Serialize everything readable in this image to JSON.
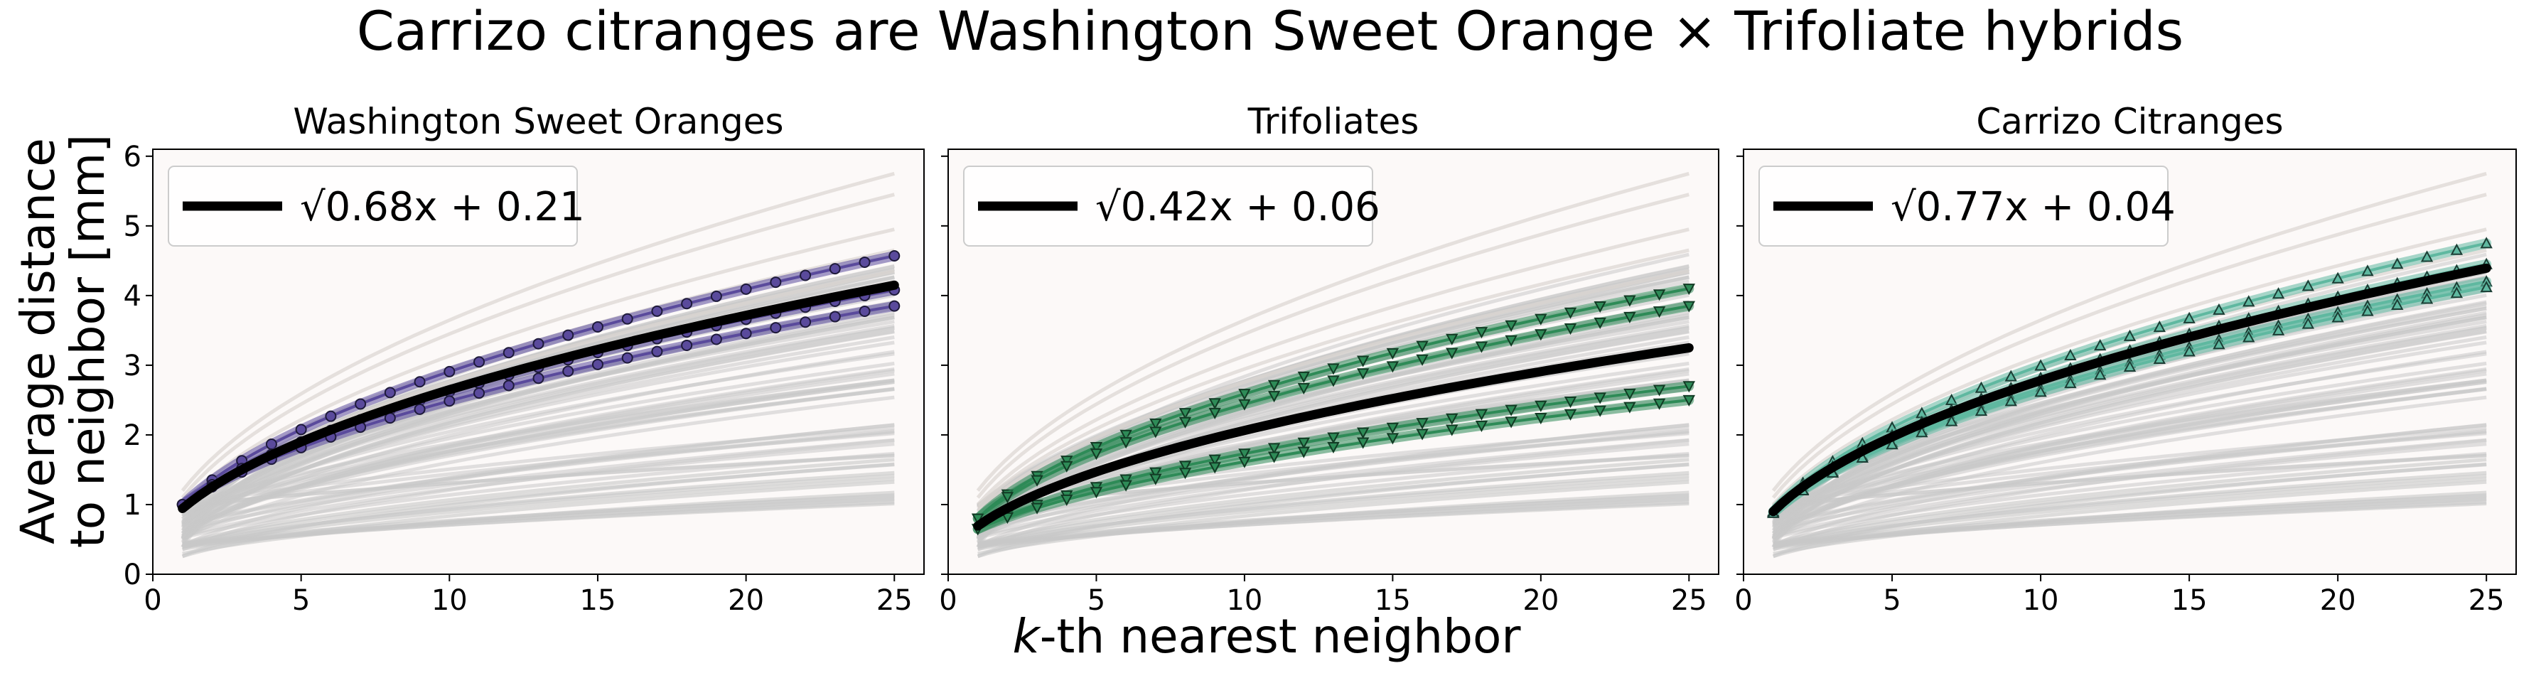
{
  "suptitle": "Carrizo citranges are Washington Sweet Orange × Trifoliate hybrids",
  "xlabel_k": "k",
  "xlabel_rest": "-th nearest neighbor",
  "ylabel_line1": "Average distance",
  "ylabel_line2": "to neighbor [mm]",
  "x_ticks": [
    "0",
    "5",
    "10",
    "15",
    "20",
    "25"
  ],
  "y_ticks": [
    "0",
    "1",
    "2",
    "3",
    "4",
    "5",
    "6"
  ],
  "colors": {
    "background_curves": "#c8c8c8",
    "faint_curves": "#dcd6d2",
    "fit": "#000000",
    "axes_bg": "#fcf9f8"
  },
  "chart_data": [
    {
      "type": "line",
      "title": "Washington Sweet Oranges",
      "legend_label": "√0.68x + 0.21",
      "legend_location": "top-left",
      "xlim": [
        0,
        26
      ],
      "ylim": [
        0,
        6.1
      ],
      "fit": {
        "a": 0.68,
        "b": 0.21
      },
      "highlight_color": "#5a4a9c",
      "marker": "circle",
      "series": [
        {
          "x": [
            1,
            25
          ],
          "y": [
            1.0,
            4.57
          ]
        },
        {
          "x": [
            1,
            25
          ],
          "y": [
            1.0,
            4.08
          ]
        },
        {
          "x": [
            1,
            25
          ],
          "y": [
            1.0,
            3.85
          ]
        }
      ]
    },
    {
      "type": "line",
      "title": "Trifoliates",
      "legend_label": "√0.42x + 0.06",
      "legend_location": "top-left",
      "xlim": [
        0,
        26
      ],
      "ylim": [
        0,
        6.1
      ],
      "fit": {
        "a": 0.42,
        "b": 0.06
      },
      "highlight_color": "#2e8b57",
      "marker": "triangle-down",
      "series": [
        {
          "x": [
            1,
            25
          ],
          "y": [
            0.8,
            4.1
          ]
        },
        {
          "x": [
            1,
            25
          ],
          "y": [
            0.8,
            3.85
          ]
        },
        {
          "x": [
            1,
            25
          ],
          "y": [
            0.65,
            2.7
          ]
        },
        {
          "x": [
            1,
            25
          ],
          "y": [
            0.65,
            2.5
          ]
        }
      ]
    },
    {
      "type": "line",
      "title": "Carrizo Citranges",
      "legend_label": "√0.77x + 0.04",
      "legend_location": "top-left",
      "xlim": [
        0,
        26
      ],
      "ylim": [
        0,
        6.1
      ],
      "fit": {
        "a": 0.77,
        "b": 0.04
      },
      "highlight_color": "#5fb8a0",
      "marker": "triangle-up",
      "series": [
        {
          "x": [
            1,
            25
          ],
          "y": [
            0.9,
            4.75
          ]
        },
        {
          "x": [
            1,
            25
          ],
          "y": [
            0.9,
            4.45
          ]
        },
        {
          "x": [
            1,
            25
          ],
          "y": [
            0.88,
            4.2
          ]
        },
        {
          "x": [
            1,
            25
          ],
          "y": [
            0.88,
            4.12
          ]
        }
      ]
    }
  ]
}
